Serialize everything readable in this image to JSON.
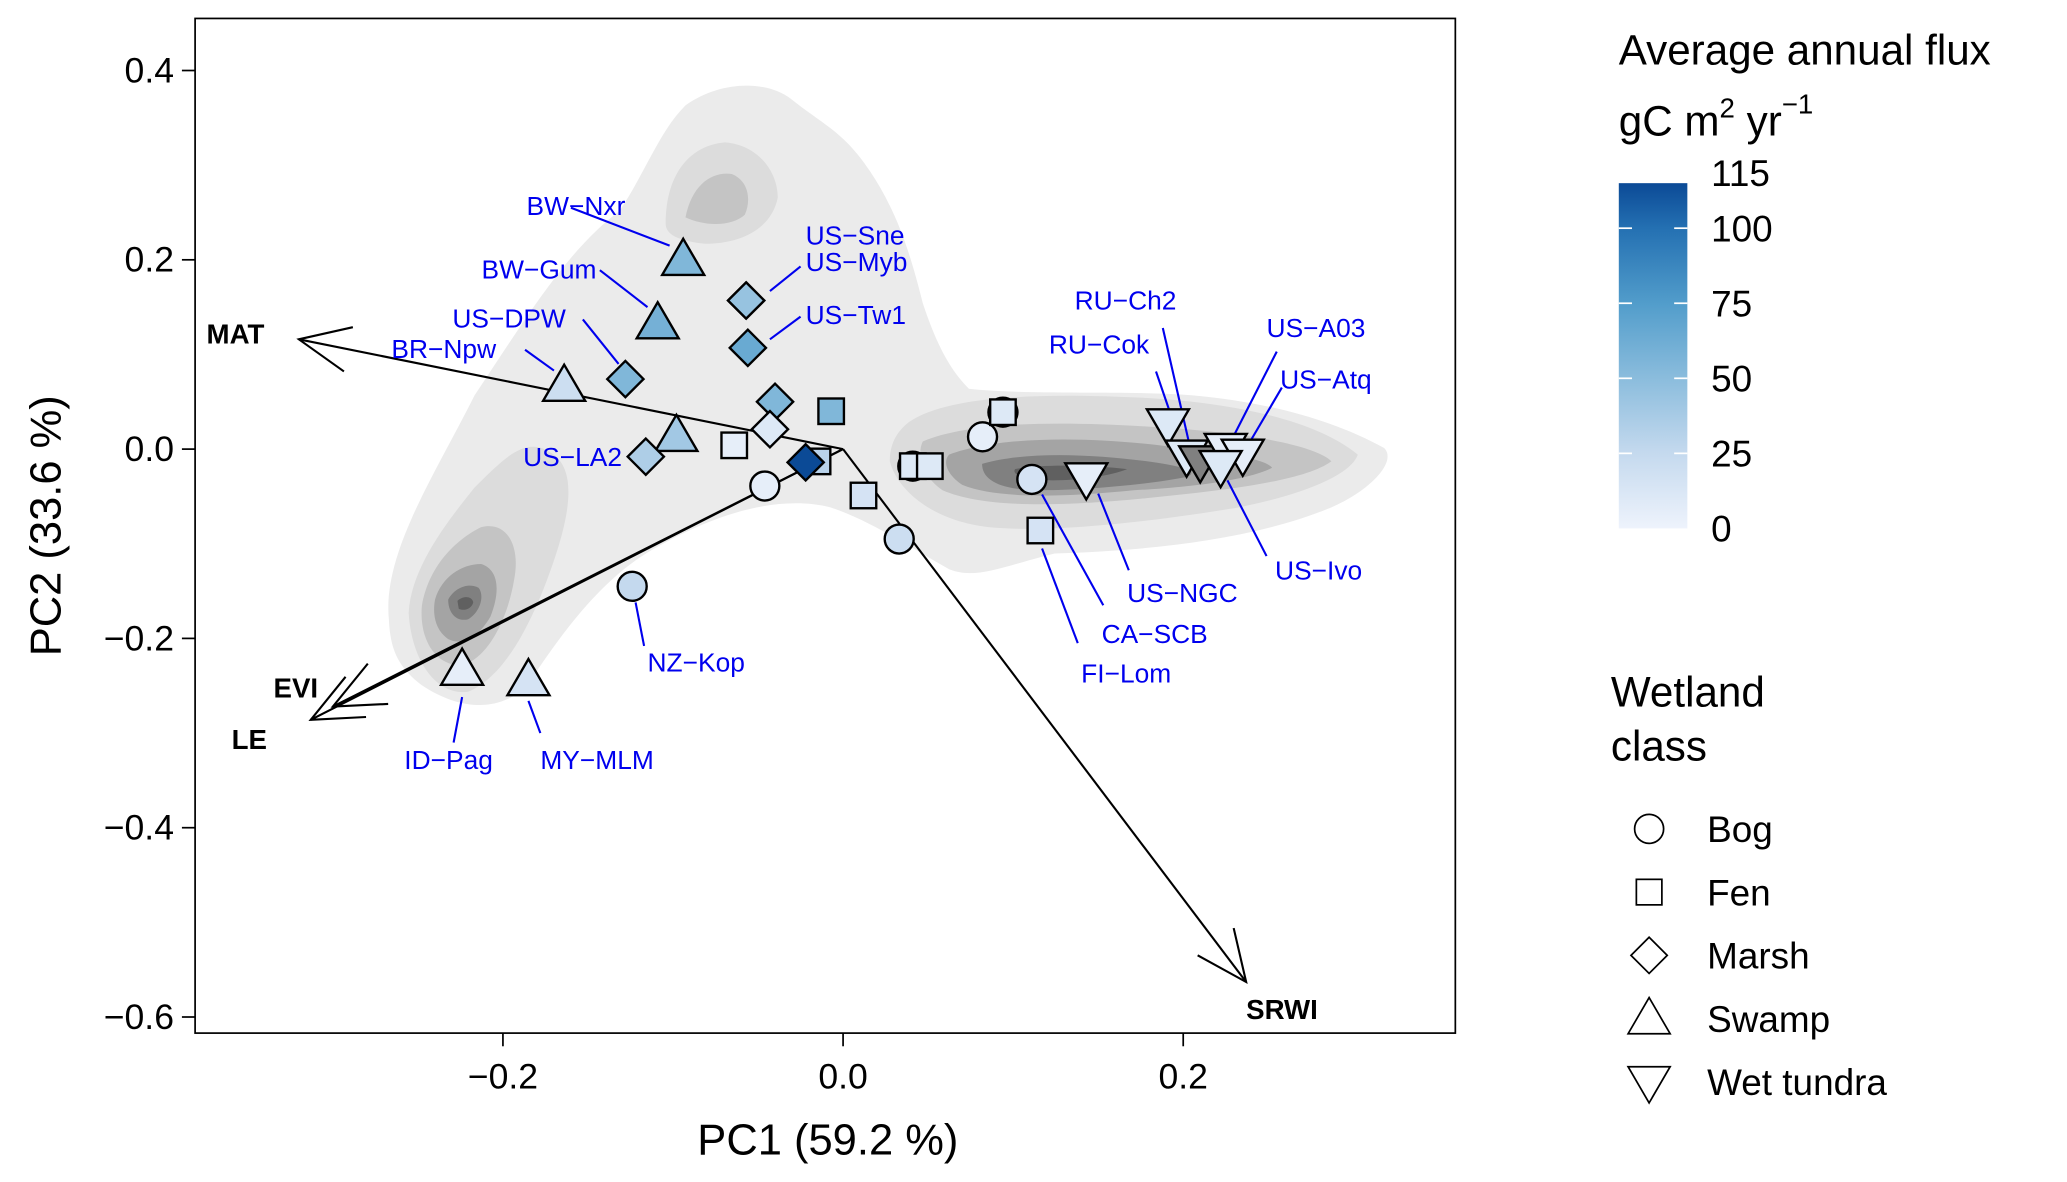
{
  "chart_data": {
    "type": "scatter",
    "title": "",
    "xlabel": "PC1 (59.2 %)",
    "ylabel": "PC2 (33.6 %)",
    "xlim": [
      -0.381,
      0.36
    ],
    "ylim": [
      -0.617,
      0.455
    ],
    "xticks": [
      -0.2,
      0.0,
      0.2
    ],
    "xtick_labels": [
      "−0.2",
      "0.0",
      "0.2"
    ],
    "yticks": [
      0.4,
      0.2,
      0.0,
      -0.2,
      -0.4,
      -0.6
    ],
    "ytick_labels": [
      "0.4",
      "0.2",
      "0.0",
      "−0.2",
      "−0.4",
      "−0.6"
    ],
    "grid": false,
    "density_background": "grey kernel-density contours of all site-years",
    "loadings": [
      {
        "name": "MAT",
        "x": -0.32,
        "y": 0.116
      },
      {
        "name": "EVI",
        "x": -0.3,
        "y": -0.272
      },
      {
        "name": "LE",
        "x": -0.313,
        "y": -0.286
      },
      {
        "name": "SRWI",
        "x": 0.237,
        "y": -0.563
      }
    ],
    "points": [
      {
        "site": "BW-Nxr",
        "class": "Swamp",
        "x": -0.094,
        "y": 0.2,
        "flux": 55
      },
      {
        "site": "BW-Gum",
        "class": "Swamp",
        "x": -0.109,
        "y": 0.133,
        "flux": 60
      },
      {
        "site": "BR-Npw",
        "class": "Swamp",
        "x": -0.164,
        "y": 0.067,
        "flux": 20
      },
      {
        "site": "US-DPW",
        "class": "Marsh",
        "x": -0.128,
        "y": 0.074,
        "flux": 55
      },
      {
        "site": "US-Sne",
        "class": "Marsh",
        "x": -0.057,
        "y": 0.157,
        "flux": 45
      },
      {
        "site": "US-Myb",
        "class": "Marsh",
        "x": -0.057,
        "y": 0.157,
        "flux": 45
      },
      {
        "site": "US-Tw1",
        "class": "Marsh",
        "x": -0.056,
        "y": 0.107,
        "flux": 65
      },
      {
        "site": "",
        "class": "Marsh",
        "x": -0.04,
        "y": 0.05,
        "flux": 55
      },
      {
        "site": "",
        "class": "Marsh",
        "x": -0.043,
        "y": 0.021,
        "flux": 10
      },
      {
        "site": "",
        "class": "Swamp",
        "x": -0.098,
        "y": 0.014,
        "flux": 40
      },
      {
        "site": "US-LA2",
        "class": "Marsh",
        "x": -0.116,
        "y": -0.008,
        "flux": 35
      },
      {
        "site": "",
        "class": "Fen",
        "x": -0.064,
        "y": 0.004,
        "flux": 5
      },
      {
        "site": "",
        "class": "Fen",
        "x": -0.007,
        "y": 0.04,
        "flux": 55
      },
      {
        "site": "",
        "class": "Fen",
        "x": -0.015,
        "y": -0.013,
        "flux": 30
      },
      {
        "site": "",
        "class": "Marsh",
        "x": -0.022,
        "y": -0.014,
        "flux": 115
      },
      {
        "site": "",
        "class": "Bog",
        "x": -0.046,
        "y": -0.039,
        "flux": 5
      },
      {
        "site": "",
        "class": "Fen",
        "x": 0.012,
        "y": -0.049,
        "flux": 15
      },
      {
        "site": "",
        "class": "Bog",
        "x": 0.033,
        "y": -0.095,
        "flux": 20
      },
      {
        "site": "NZ-Kop",
        "class": "Bog",
        "x": -0.124,
        "y": -0.145,
        "flux": 25
      },
      {
        "site": "",
        "class": "Bog",
        "x": 0.041,
        "y": -0.018,
        "flux": 10
      },
      {
        "site": "",
        "class": "Fen",
        "x": 0.041,
        "y": -0.018,
        "flux": 10
      },
      {
        "site": "",
        "class": "Fen",
        "x": 0.051,
        "y": -0.018,
        "flux": 10
      },
      {
        "site": "",
        "class": "Bog",
        "x": 0.082,
        "y": 0.013,
        "flux": 5
      },
      {
        "site": "",
        "class": "Bog",
        "x": 0.094,
        "y": 0.039,
        "flux": 10
      },
      {
        "site": "",
        "class": "Fen",
        "x": 0.094,
        "y": 0.039,
        "flux": 10
      },
      {
        "site": "CA-SCB",
        "class": "Bog",
        "x": 0.111,
        "y": -0.032,
        "flux": 15
      },
      {
        "site": "FI-Lom",
        "class": "Fen",
        "x": 0.116,
        "y": -0.086,
        "flux": 15
      },
      {
        "site": "US-NGC",
        "class": "Wet tundra",
        "x": 0.143,
        "y": -0.031,
        "flux": 5
      },
      {
        "site": "RU-Cok",
        "class": "Wet tundra",
        "x": 0.191,
        "y": 0.026,
        "flux": 10
      },
      {
        "site": "RU-Ch2",
        "class": "Wet tundra",
        "x": 0.202,
        "y": -0.007,
        "flux": 10
      },
      {
        "site": "",
        "class": "Wet tundra",
        "x": 0.21,
        "y": -0.013,
        "flux": -1
      },
      {
        "site": "US-A03",
        "class": "Wet tundra",
        "x": 0.225,
        "y": 0.0,
        "flux": 5
      },
      {
        "site": "US-Atq",
        "class": "Wet tundra",
        "x": 0.235,
        "y": -0.006,
        "flux": 5
      },
      {
        "site": "US-Ivo",
        "class": "Wet tundra",
        "x": 0.222,
        "y": -0.018,
        "flux": 10
      },
      {
        "site": "ID-Pag",
        "class": "Swamp",
        "x": -0.224,
        "y": -0.233,
        "flux": 5
      },
      {
        "site": "MY-MLM",
        "class": "Swamp",
        "x": -0.185,
        "y": -0.244,
        "flux": 15
      }
    ],
    "labels": [
      {
        "text": "BW−Nxr",
        "lx": -0.16,
        "ly": 0.255,
        "px": -0.102,
        "py": 0.215,
        "anchor": "end",
        "tx": -0.128,
        "ty": 0.257
      },
      {
        "text": "BW−Gum",
        "lx": -0.143,
        "ly": 0.189,
        "px": -0.115,
        "py": 0.15,
        "anchor": "end",
        "tx": -0.145,
        "ty": 0.19
      },
      {
        "text": "US−DPW",
        "lx": -0.153,
        "ly": 0.137,
        "px": -0.132,
        "py": 0.09,
        "anchor": "end",
        "tx": -0.163,
        "ty": 0.138
      },
      {
        "text": "BR−Npw",
        "lx": -0.187,
        "ly": 0.105,
        "px": -0.17,
        "py": 0.083,
        "anchor": "end",
        "tx": -0.204,
        "ty": 0.106
      },
      {
        "text": "US−Sne",
        "lx": -0.025,
        "ly": 0.228,
        "px": -0.025,
        "py": 0.228,
        "anchor": "start",
        "tx": -0.022,
        "ty": 0.226
      },
      {
        "text": "US−Myb",
        "lx": -0.025,
        "ly": 0.193,
        "px": -0.043,
        "py": 0.167,
        "anchor": "start",
        "tx": -0.022,
        "ty": 0.198
      },
      {
        "text": "US−Tw1",
        "lx": -0.025,
        "ly": 0.14,
        "px": -0.043,
        "py": 0.116,
        "anchor": "start",
        "tx": -0.022,
        "ty": 0.142
      },
      {
        "text": "US−LA2",
        "lx": -0.131,
        "ly": -0.008,
        "px": -0.131,
        "py": -0.008,
        "anchor": "end",
        "tx": -0.13,
        "ty": -0.008
      },
      {
        "text": "NZ−Kop",
        "lx": -0.117,
        "ly": -0.208,
        "px": -0.122,
        "py": -0.162,
        "anchor": "start",
        "tx": -0.115,
        "ty": -0.225
      },
      {
        "text": "ID−Pag",
        "lx": -0.229,
        "ly": -0.31,
        "px": -0.224,
        "py": -0.262,
        "anchor": "middle",
        "tx": -0.258,
        "ty": -0.328
      },
      {
        "text": "MY−MLM",
        "lx": -0.178,
        "ly": -0.3,
        "px": -0.185,
        "py": -0.266,
        "anchor": "start",
        "tx": -0.178,
        "ty": -0.328
      },
      {
        "text": "RU−Ch2",
        "lx": 0.188,
        "ly": 0.128,
        "px": 0.203,
        "py": 0.01,
        "anchor": "end",
        "tx": 0.196,
        "ty": 0.157
      },
      {
        "text": "RU−Cok",
        "lx": 0.184,
        "ly": 0.082,
        "px": 0.192,
        "py": 0.04,
        "anchor": "end",
        "tx": 0.18,
        "ty": 0.111
      },
      {
        "text": "US−A03",
        "lx": 0.255,
        "ly": 0.103,
        "px": 0.23,
        "py": 0.015,
        "anchor": "start",
        "tx": 0.249,
        "ty": 0.128
      },
      {
        "text": "US−Atq",
        "lx": 0.258,
        "ly": 0.065,
        "px": 0.24,
        "py": 0.01,
        "anchor": "start",
        "tx": 0.257,
        "ty": 0.074
      },
      {
        "text": "US−Ivo",
        "lx": 0.249,
        "ly": -0.113,
        "px": 0.226,
        "py": -0.033,
        "anchor": "start",
        "tx": 0.254,
        "ty": -0.128
      },
      {
        "text": "US−NGC",
        "lx": 0.168,
        "ly": -0.128,
        "px": 0.15,
        "py": -0.047,
        "anchor": "start",
        "tx": 0.167,
        "ty": -0.152
      },
      {
        "text": "CA−SCB",
        "lx": 0.153,
        "ly": -0.165,
        "px": 0.117,
        "py": -0.048,
        "anchor": "start",
        "tx": 0.152,
        "ty": -0.195
      },
      {
        "text": "FI−Lom",
        "lx": 0.138,
        "ly": -0.205,
        "px": 0.117,
        "py": -0.105,
        "anchor": "start",
        "tx": 0.14,
        "ty": -0.237
      }
    ],
    "colorbar": {
      "title_line1": "Average annual flux",
      "title_line2_base": "gC m",
      "title_line2_sup1": "2",
      "title_line2_mid": " yr",
      "title_line2_sup2": "−1",
      "min": 0,
      "max": 115,
      "ticks": [
        0,
        25,
        50,
        75,
        100,
        115
      ],
      "tick_labels": [
        "0",
        "25",
        "50",
        "75",
        "100",
        "115"
      ],
      "color_low": "#eef3fc",
      "color_high": "#0b4a96"
    },
    "shape_legend": {
      "title_line1": "Wetland",
      "title_line2": "class",
      "items": [
        {
          "label": "Bog",
          "shape": "circle"
        },
        {
          "label": "Fen",
          "shape": "square"
        },
        {
          "label": "Marsh",
          "shape": "diamond"
        },
        {
          "label": "Swamp",
          "shape": "triangle-up"
        },
        {
          "label": "Wet tundra",
          "shape": "triangle-down"
        }
      ]
    },
    "colors": {
      "label_text": "#0000ee",
      "missing_flux_fill": "#808080",
      "density_light": "#ebebeb",
      "density_dark": "#5a5a5a"
    }
  }
}
